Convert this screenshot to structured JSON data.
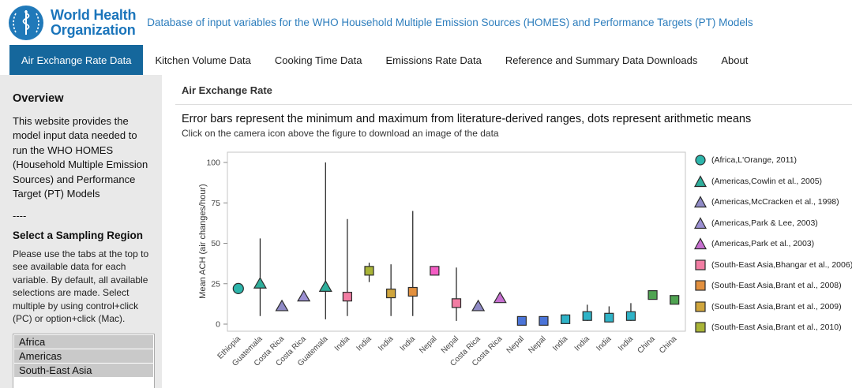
{
  "header": {
    "logo_line1": "World Health",
    "logo_line2": "Organization",
    "page_title": "Database of input variables for the WHO Household Multiple Emission Sources (HOMES) and Performance Targets (PT) Models"
  },
  "colors": {
    "who_blue": "#1b75bb",
    "title_blue": "#2e7ebd",
    "active_tab": "#15679c",
    "sidebar_bg": "#e9e9e9"
  },
  "nav": {
    "tabs": [
      {
        "label": "Air Exchange Rate Data",
        "active": true
      },
      {
        "label": "Kitchen Volume Data",
        "active": false
      },
      {
        "label": "Cooking Time Data",
        "active": false
      },
      {
        "label": "Emissions Rate Data",
        "active": false
      },
      {
        "label": "Reference and Summary Data Downloads",
        "active": false
      },
      {
        "label": "About",
        "active": false
      }
    ]
  },
  "sidebar": {
    "overview_title": "Overview",
    "overview_text": "This website provides the model input data needed to run the WHO HOMES (Household Multiple Emission Sources) and Performance Target (PT) Models",
    "divider": "----",
    "region_title": "Select a Sampling Region",
    "region_help": "Please use the tabs at the top to see available data for each variable. By default, all available selections are made. Select multiple by using control+click (PC) or option+click (Mac).",
    "region_options": [
      "Africa",
      "Americas",
      "South-East Asia"
    ]
  },
  "main": {
    "section_title": "Air Exchange Rate",
    "subtitle": "Error bars represent the minimum and maximum from literature-derived ranges, dots represent arithmetic means",
    "hint": "Click on the camera icon above the figure to download an image of the data"
  },
  "chart_data": {
    "type": "scatter",
    "title": "",
    "xlabel": "",
    "ylabel": "Mean ACH (air changes/hour)",
    "ylim": [
      -5,
      106
    ],
    "yticks": [
      0,
      25,
      50,
      75,
      100
    ],
    "grid": false,
    "legend_position": "right",
    "points": [
      {
        "x": "Ethiopia",
        "mean": 22,
        "min": 20,
        "max": 25,
        "shape": "circle",
        "color": "#2db5ab"
      },
      {
        "x": "Guatemala",
        "mean": 25,
        "min": 5,
        "max": 53,
        "shape": "triangle",
        "color": "#2fae9b"
      },
      {
        "x": "Costa Rica",
        "mean": 11,
        "min": null,
        "max": null,
        "shape": "triangle",
        "color": "#8f8ac6"
      },
      {
        "x": "Costa Rica",
        "mean": 17,
        "min": null,
        "max": null,
        "shape": "triangle",
        "color": "#9b8fd2"
      },
      {
        "x": "Guatemala",
        "mean": 23,
        "min": 3,
        "max": 100,
        "shape": "triangle",
        "color": "#2fae9b"
      },
      {
        "x": "India",
        "mean": 17,
        "min": 5,
        "max": 65,
        "shape": "square",
        "color": "#f27da3"
      },
      {
        "x": "India",
        "mean": 33,
        "min": 26,
        "max": 38,
        "shape": "square",
        "color": "#a9b437"
      },
      {
        "x": "India",
        "mean": 19,
        "min": 5,
        "max": 37,
        "shape": "square",
        "color": "#cfa53d"
      },
      {
        "x": "India",
        "mean": 20,
        "min": 5,
        "max": 70,
        "shape": "square",
        "color": "#e2903e"
      },
      {
        "x": "Nepal",
        "mean": 33,
        "min": null,
        "max": null,
        "shape": "square",
        "color": "#f45cc4"
      },
      {
        "x": "Nepal",
        "mean": 13,
        "min": 2,
        "max": 35,
        "shape": "square",
        "color": "#f27da3"
      },
      {
        "x": "Costa Rica",
        "mean": 11,
        "min": null,
        "max": null,
        "shape": "triangle",
        "color": "#8f8ac6"
      },
      {
        "x": "Costa Rica",
        "mean": 16,
        "min": null,
        "max": null,
        "shape": "triangle",
        "color": "#c76fd0"
      },
      {
        "x": "Nepal",
        "mean": 2,
        "min": 1,
        "max": 4,
        "shape": "square",
        "color": "#4b74d8"
      },
      {
        "x": "Nepal",
        "mean": 2,
        "min": 1,
        "max": 3,
        "shape": "square",
        "color": "#4b74d8"
      },
      {
        "x": "India",
        "mean": 3,
        "min": 1,
        "max": 6,
        "shape": "square",
        "color": "#2fb3c7"
      },
      {
        "x": "India",
        "mean": 5,
        "min": 2,
        "max": 12,
        "shape": "square",
        "color": "#2fb3c7"
      },
      {
        "x": "India",
        "mean": 4,
        "min": 1,
        "max": 11,
        "shape": "square",
        "color": "#2fb3c7"
      },
      {
        "x": "India",
        "mean": 5,
        "min": 2,
        "max": 13,
        "shape": "square",
        "color": "#2fb3c7"
      },
      {
        "x": "China",
        "mean": 18,
        "min": null,
        "max": null,
        "shape": "square",
        "color": "#4fa351"
      },
      {
        "x": "China",
        "mean": 15,
        "min": null,
        "max": null,
        "shape": "square",
        "color": "#4fa351"
      }
    ],
    "legend": [
      {
        "label": "(Africa,L'Orange, 2011)",
        "shape": "circle",
        "color": "#2db5ab"
      },
      {
        "label": "(Americas,Cowlin et al., 2005)",
        "shape": "triangle",
        "color": "#2fae9b"
      },
      {
        "label": "(Americas,McCracken et al., 1998)",
        "shape": "triangle",
        "color": "#8f8ac6"
      },
      {
        "label": "(Americas,Park & Lee, 2003)",
        "shape": "triangle",
        "color": "#9b8fd2"
      },
      {
        "label": "(Americas,Park et al., 2003)",
        "shape": "triangle",
        "color": "#c76fd0"
      },
      {
        "label": "(South-East Asia,Bhangar et al., 2006)",
        "shape": "square",
        "color": "#f27da3"
      },
      {
        "label": "(South-East Asia,Brant et al., 2008)",
        "shape": "square",
        "color": "#e2903e"
      },
      {
        "label": "(South-East Asia,Brant et al., 2009)",
        "shape": "square",
        "color": "#cfa53d"
      },
      {
        "label": "(South-East Asia,Brant et al., 2010)",
        "shape": "square",
        "color": "#a9b437"
      }
    ]
  }
}
